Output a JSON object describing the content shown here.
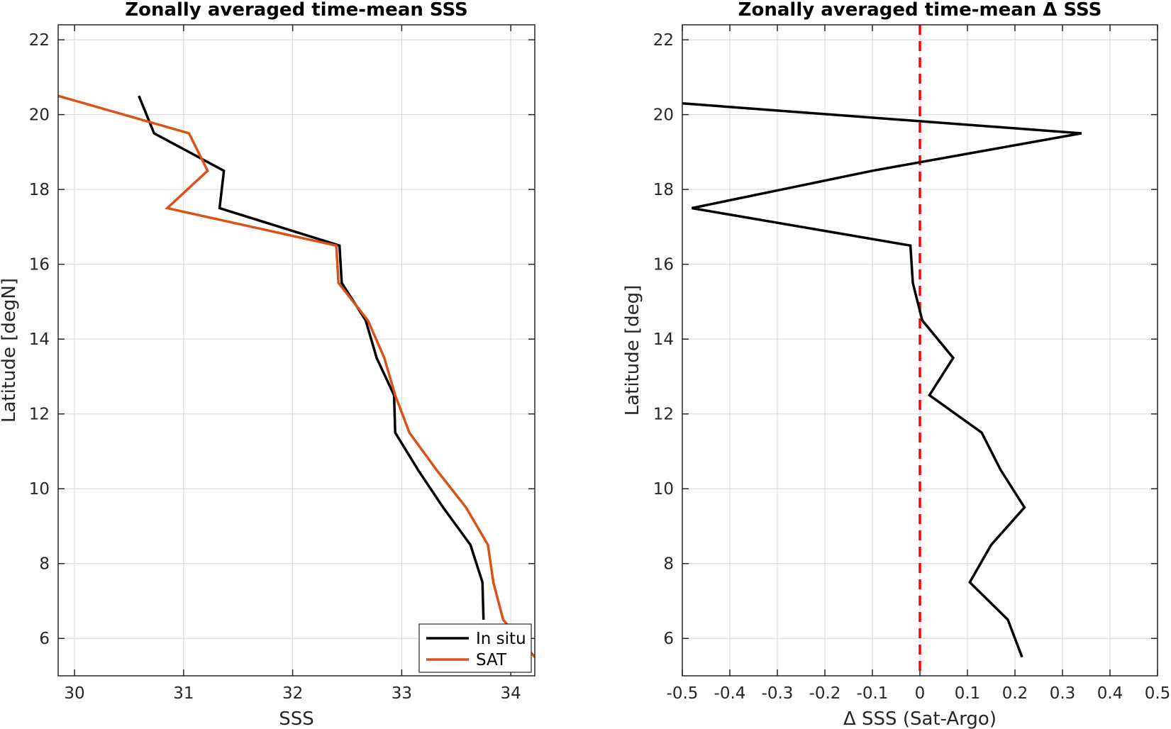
{
  "chart_data": [
    {
      "type": "line",
      "title": "Zonally averaged time-mean SSS",
      "xlabel": "SSS",
      "ylabel": "Latitude [degN]",
      "xlim": [
        29.85,
        34.22
      ],
      "ylim": [
        5.0,
        22.4
      ],
      "xticks": [
        30,
        31,
        32,
        33,
        34
      ],
      "yticks": [
        6,
        8,
        10,
        12,
        14,
        16,
        18,
        20,
        22
      ],
      "grid": true,
      "legend_position": "bottom-right",
      "series": [
        {
          "name": "In situ",
          "color": "#000000",
          "x": [
            30.59,
            30.73,
            31.37,
            31.33,
            32.43,
            32.45,
            32.67,
            32.77,
            32.93,
            32.94,
            33.15,
            33.38,
            33.63,
            33.74,
            33.75
          ],
          "y": [
            20.5,
            19.5,
            18.5,
            17.5,
            16.5,
            15.5,
            14.5,
            13.5,
            12.5,
            11.5,
            10.5,
            9.5,
            8.5,
            7.5,
            6.5
          ]
        },
        {
          "name": "SAT",
          "color": "#d95319",
          "x": [
            29.85,
            31.05,
            31.22,
            30.85,
            32.4,
            32.42,
            32.69,
            32.84,
            32.94,
            33.07,
            33.32,
            33.59,
            33.79,
            33.84,
            33.93,
            34.22
          ],
          "y": [
            20.5,
            19.5,
            18.5,
            17.5,
            16.5,
            15.5,
            14.5,
            13.5,
            12.5,
            11.5,
            10.5,
            9.5,
            8.5,
            7.5,
            6.5,
            5.5
          ]
        }
      ]
    },
    {
      "type": "line",
      "title": "Zonally averaged time-mean Δ SSS",
      "xlabel": "Δ SSS (Sat-Argo)",
      "ylabel": "Latitude [deg]",
      "xlim": [
        -0.5,
        0.5
      ],
      "ylim": [
        5.0,
        22.4
      ],
      "xticks": [
        -0.5,
        -0.4,
        -0.3,
        -0.2,
        -0.1,
        0,
        0.1,
        0.2,
        0.3,
        0.4,
        0.5
      ],
      "xticklabels": [
        "-0.5",
        "-0.4",
        "-0.3",
        "-0.2",
        "-0.1",
        "0",
        "0.1",
        "0.2",
        "0.3",
        "0.4",
        "0.5"
      ],
      "yticks": [
        6,
        8,
        10,
        12,
        14,
        16,
        18,
        20,
        22
      ],
      "grid": true,
      "reference_line": {
        "x": 0,
        "color": "#ff0000",
        "style": "dashed"
      },
      "series": [
        {
          "color": "#000000",
          "x": [
            -0.5,
            0.34,
            -0.1,
            -0.48,
            -0.02,
            -0.015,
            0.005,
            0.07,
            0.02,
            0.13,
            0.17,
            0.22,
            0.15,
            0.105,
            0.185,
            0.215
          ],
          "y": [
            20.3,
            19.5,
            18.5,
            17.5,
            16.5,
            15.5,
            14.5,
            13.5,
            12.5,
            11.5,
            10.5,
            9.5,
            8.5,
            7.5,
            6.5,
            5.5
          ]
        }
      ]
    }
  ]
}
